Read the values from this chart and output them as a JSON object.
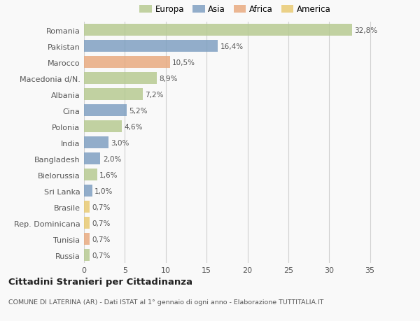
{
  "categories": [
    "Romania",
    "Pakistan",
    "Marocco",
    "Macedonia d/N.",
    "Albania",
    "Cina",
    "Polonia",
    "India",
    "Bangladesh",
    "Bielorussia",
    "Sri Lanka",
    "Brasile",
    "Rep. Dominicana",
    "Tunisia",
    "Russia"
  ],
  "values": [
    32.8,
    16.4,
    10.5,
    8.9,
    7.2,
    5.2,
    4.6,
    3.0,
    2.0,
    1.6,
    1.0,
    0.7,
    0.7,
    0.7,
    0.7
  ],
  "labels": [
    "32,8%",
    "16,4%",
    "10,5%",
    "8,9%",
    "7,2%",
    "5,2%",
    "4,6%",
    "3,0%",
    "2,0%",
    "1,6%",
    "1,0%",
    "0,7%",
    "0,7%",
    "0,7%",
    "0,7%"
  ],
  "colors": [
    "#b5c98e",
    "#7b9dc0",
    "#e8a87c",
    "#b5c98e",
    "#b5c98e",
    "#7b9dc0",
    "#b5c98e",
    "#7b9dc0",
    "#7b9dc0",
    "#b5c98e",
    "#7b9dc0",
    "#e8c96e",
    "#e8c96e",
    "#e8a87c",
    "#b5c98e"
  ],
  "legend_labels": [
    "Europa",
    "Asia",
    "Africa",
    "America"
  ],
  "legend_colors": [
    "#b5c98e",
    "#7b9dc0",
    "#e8a87c",
    "#e8c96e"
  ],
  "title": "Cittadini Stranieri per Cittadinanza",
  "subtitle": "COMUNE DI LATERINA (AR) - Dati ISTAT al 1° gennaio di ogni anno - Elaborazione TUTTITALIA.IT",
  "xlim": [
    0,
    37
  ],
  "background_color": "#f9f9f9",
  "grid_color": "#d0d0d0"
}
